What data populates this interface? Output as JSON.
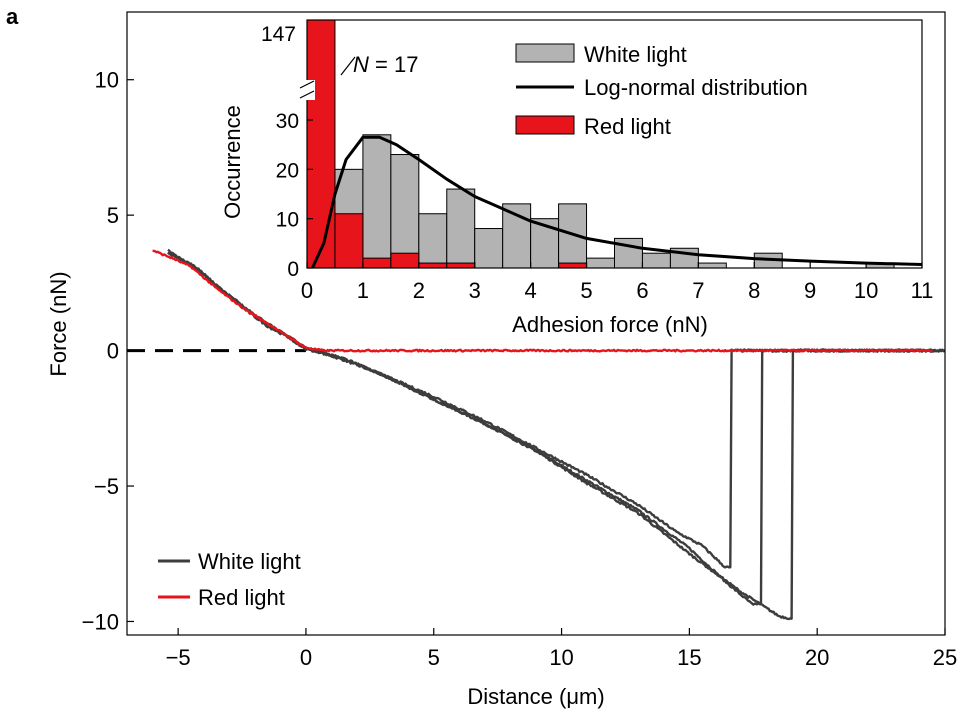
{
  "chart_data": [
    {
      "panel_label": "a",
      "type": "line",
      "title": "",
      "xlabel": "Distance (μm)",
      "ylabel": "Force (nN)",
      "xlim": [
        -7,
        25
      ],
      "ylim": [
        -10.5,
        12.5
      ],
      "xticks": [
        -5,
        0,
        5,
        10,
        15,
        20,
        25
      ],
      "xtick_labels": [
        "−5",
        "0",
        "5",
        "10",
        "15",
        "20",
        "25"
      ],
      "yticks": [
        -10,
        -5,
        0,
        5,
        10
      ],
      "ytick_labels": [
        "−10",
        "−5",
        "0",
        "5",
        "10"
      ],
      "zero_line": "dashed",
      "legend": {
        "position": "bottom-left",
        "entries": [
          "White light",
          "Red light"
        ]
      },
      "series": [
        {
          "name": "White light",
          "color": "#3d3d3d",
          "noise": 0.08,
          "points": [
            [
              -5.4,
              3.7
            ],
            [
              -4.8,
              3.3
            ],
            [
              -4.2,
              3.0
            ],
            [
              -3.5,
              2.4
            ],
            [
              -2.5,
              1.6
            ],
            [
              -1.5,
              0.9
            ],
            [
              -0.5,
              0.4
            ],
            [
              0,
              0.1
            ],
            [
              1.5,
              -0.3
            ],
            [
              3,
              -0.9
            ],
            [
              5,
              -1.7
            ],
            [
              7,
              -2.6
            ],
            [
              9,
              -3.6
            ],
            [
              11,
              -4.6
            ],
            [
              13,
              -5.7
            ],
            [
              14.5,
              -6.7
            ],
            [
              15.5,
              -7.2
            ],
            [
              16.4,
              -8.0
            ],
            [
              16.6,
              -8.0
            ],
            [
              16.65,
              0
            ],
            [
              17,
              0
            ],
            [
              20,
              0
            ],
            [
              25,
              0
            ]
          ]
        },
        {
          "name": "White light",
          "color": "#3d3d3d",
          "noise": 0.08,
          "points": [
            [
              -5.4,
              3.6
            ],
            [
              -4.5,
              3.2
            ],
            [
              -3.5,
              2.4
            ],
            [
              -2,
              1.3
            ],
            [
              -1,
              0.7
            ],
            [
              0,
              0.1
            ],
            [
              1.5,
              -0.35
            ],
            [
              3,
              -0.9
            ],
            [
              5,
              -1.8
            ],
            [
              7,
              -2.7
            ],
            [
              9,
              -3.7
            ],
            [
              11,
              -4.8
            ],
            [
              13,
              -5.9
            ],
            [
              15,
              -7.3
            ],
            [
              16.5,
              -8.6
            ],
            [
              17.5,
              -9.4
            ],
            [
              17.8,
              -9.3
            ],
            [
              17.85,
              0
            ],
            [
              18.5,
              0
            ],
            [
              25,
              0
            ]
          ]
        },
        {
          "name": "White light",
          "color": "#3d3d3d",
          "noise": 0.08,
          "points": [
            [
              -5.3,
              3.6
            ],
            [
              -4.4,
              3.1
            ],
            [
              -3.5,
              2.4
            ],
            [
              -2,
              1.3
            ],
            [
              -1,
              0.7
            ],
            [
              0,
              0.05
            ],
            [
              1.5,
              -0.3
            ],
            [
              3,
              -0.9
            ],
            [
              5,
              -1.8
            ],
            [
              7,
              -2.7
            ],
            [
              9,
              -3.7
            ],
            [
              11,
              -4.9
            ],
            [
              13,
              -6.0
            ],
            [
              15,
              -7.5
            ],
            [
              17,
              -8.9
            ],
            [
              18.5,
              -9.8
            ],
            [
              19,
              -9.9
            ],
            [
              19.05,
              0
            ],
            [
              20,
              0
            ],
            [
              25,
              0
            ]
          ]
        },
        {
          "name": "Red light",
          "color": "#e8141b",
          "noise": 0.06,
          "points": [
            [
              -6,
              3.7
            ],
            [
              -5.2,
              3.4
            ],
            [
              -4.5,
              3.1
            ],
            [
              -3.5,
              2.3
            ],
            [
              -2.5,
              1.6
            ],
            [
              -1.5,
              1.0
            ],
            [
              -0.5,
              0.4
            ],
            [
              0,
              0.1
            ],
            [
              0.7,
              0
            ],
            [
              24.5,
              0
            ]
          ]
        }
      ]
    },
    {
      "type": "bar",
      "inset": true,
      "xlabel": "Adhesion force (nN)",
      "ylabel": "Occurrence",
      "xlim": [
        0,
        11
      ],
      "xticks": [
        0,
        1,
        2,
        3,
        4,
        5,
        6,
        7,
        8,
        9,
        10,
        11
      ],
      "yticks": [
        0,
        10,
        20,
        30
      ],
      "ytick_labels": [
        "0",
        "10",
        "20",
        "30"
      ],
      "axis_break_label": "147",
      "annotation": {
        "variable": "N",
        "text": " = 17"
      },
      "bin_width": 0.5,
      "legend": {
        "position": "top-right",
        "entries": [
          "White light",
          "Log-normal distribution",
          "Red light"
        ]
      },
      "series": [
        {
          "name": "White light",
          "color": "#b3b3b3",
          "bins": [
            0.5,
            1.0,
            1.5,
            2.0,
            2.5,
            3.0,
            3.5,
            4.0,
            4.5,
            5.0,
            5.5,
            6.0,
            6.5,
            7.0,
            7.5,
            8.0,
            8.5,
            9.0,
            9.5,
            10.0,
            10.5
          ],
          "values": [
            20,
            27,
            23,
            11,
            16,
            8,
            13,
            10,
            13,
            2,
            6,
            3,
            4,
            1,
            0,
            3,
            0,
            0,
            0,
            1,
            0
          ]
        },
        {
          "name": "Red light",
          "color": "#e8141b",
          "bins": [
            0,
            0.5,
            1.0,
            1.5,
            2.0,
            2.5,
            3.0,
            3.5,
            4.0,
            4.5
          ],
          "values": [
            147,
            11,
            2,
            3,
            1,
            1,
            0,
            0,
            0,
            1
          ]
        },
        {
          "name": "Log-normal distribution",
          "type": "line",
          "color": "#000000",
          "x": [
            0.1,
            0.3,
            0.5,
            0.7,
            1.0,
            1.3,
            1.6,
            2.0,
            2.5,
            3.0,
            3.5,
            4.0,
            5.0,
            6.0,
            7.0,
            8.0,
            9.0,
            10.0,
            11.0
          ],
          "values": [
            0.1,
            5,
            15,
            22,
            26.5,
            26.5,
            25,
            22,
            18,
            14.5,
            12,
            9.5,
            6,
            4,
            2.7,
            1.9,
            1.4,
            1.0,
            0.7
          ]
        }
      ]
    }
  ]
}
